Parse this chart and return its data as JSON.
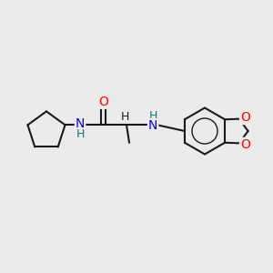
{
  "background_color": "#ebebeb",
  "bond_color": "#1a1a1a",
  "nitrogen_color": "#0000ff",
  "oxygen_color": "#ff0000",
  "nh_color": "#008080",
  "figsize": [
    3.0,
    3.0
  ],
  "dpi": 100,
  "xlim": [
    0,
    10
  ],
  "ylim": [
    0,
    10
  ]
}
